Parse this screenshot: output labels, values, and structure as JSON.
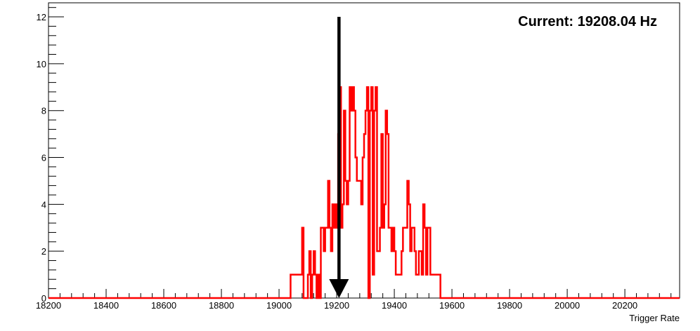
{
  "chart_data": {
    "type": "histogram",
    "title": "",
    "xlabel": "Trigger Rate",
    "ylabel": "",
    "xlim": [
      18200,
      20390
    ],
    "ylim": [
      0,
      12.6
    ],
    "x_ticks": [
      18200,
      18400,
      18600,
      18800,
      19000,
      19200,
      19400,
      19600,
      19800,
      20000,
      20200
    ],
    "y_ticks": [
      0,
      2,
      4,
      6,
      8,
      10,
      12
    ],
    "annotation": "Current: 19208.04 Hz",
    "arrow": {
      "x": 19208.04,
      "y_start": 12,
      "y_end": 0,
      "color": "#000000"
    },
    "series_color": "#ff0000",
    "grid": false,
    "bins": {
      "x_start": 19040,
      "bin_width": 5,
      "counts": [
        1,
        1,
        1,
        1,
        1,
        1,
        1,
        1,
        3,
        0,
        0,
        0,
        1,
        2,
        0,
        1,
        2,
        1,
        0,
        1,
        0,
        3,
        3,
        2,
        3,
        3,
        5,
        3,
        2,
        4,
        3,
        4,
        3,
        7,
        9,
        3,
        4,
        8,
        5,
        4,
        5,
        9,
        8,
        9,
        8,
        6,
        5,
        5,
        5,
        4,
        6,
        7,
        8,
        9,
        0,
        8,
        9,
        1,
        8,
        9,
        2,
        2,
        3,
        7,
        3,
        4,
        8,
        7,
        3,
        3,
        2,
        3,
        2,
        1,
        1,
        1,
        1,
        2,
        3,
        3,
        3,
        5,
        4,
        2,
        3,
        3,
        2,
        1,
        1,
        2,
        2,
        1,
        4,
        3,
        1,
        3,
        3,
        1,
        1,
        1,
        1,
        1,
        1,
        1,
        0,
        0
      ]
    }
  }
}
